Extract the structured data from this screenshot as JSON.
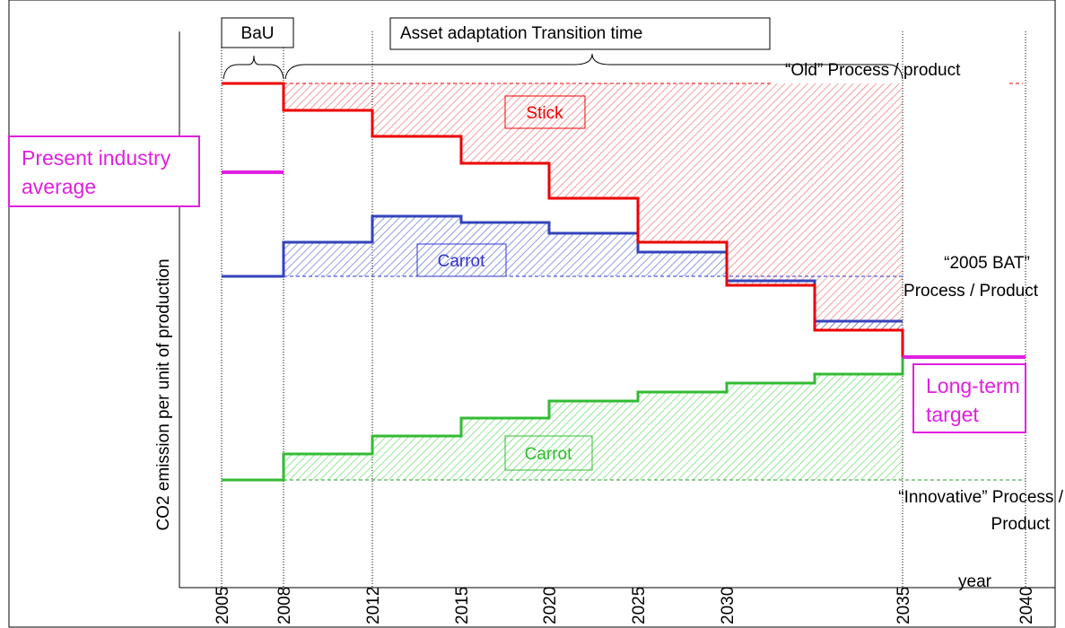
{
  "title_boxes": {
    "bau": "BaU",
    "transition": "Asset adaptation Transition time"
  },
  "y_axis_label": "CO2 emission per unit of production",
  "x_axis_label": "year",
  "years": [
    "2005",
    "2008",
    "2012",
    "2015",
    "2020",
    "2025",
    "2030",
    "2035",
    "2040"
  ],
  "labels": {
    "old": "“Old” Process / product",
    "stick": "Stick",
    "present_1": "Present industry",
    "present_2": "average",
    "carrot_blue": "Carrot",
    "bat_1": "“2005 BAT”",
    "bat_2": "Process / Product",
    "long_1": "Long-term",
    "long_2": "target",
    "carrot_green": "Carrot",
    "innov_1": "“Innovative” Process /",
    "innov_2": "Product"
  }
}
